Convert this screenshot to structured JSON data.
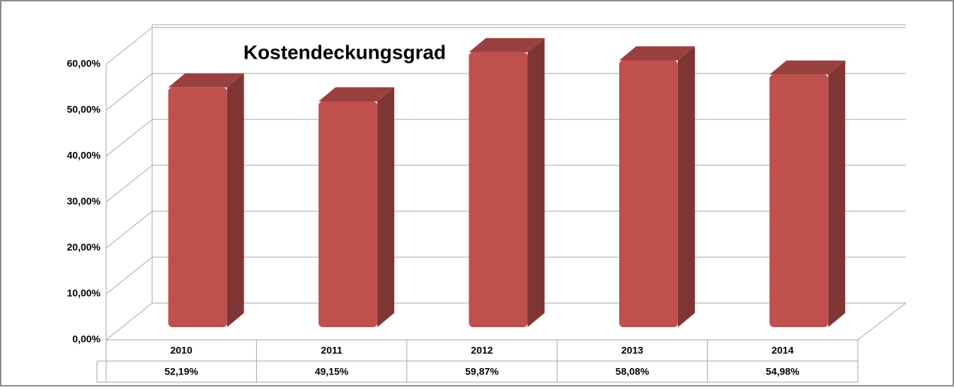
{
  "chart_data": {
    "type": "bar3d",
    "title": "Kostendeckungsgrad",
    "categories": [
      "2010",
      "2011",
      "2012",
      "2013",
      "2014"
    ],
    "values": [
      52.19,
      49.15,
      59.87,
      58.08,
      54.98
    ],
    "value_labels": [
      "52,19%",
      "49,15%",
      "59,87%",
      "58,08%",
      "54,98%"
    ],
    "color": "#c0504d",
    "ylim": [
      0,
      60
    ],
    "yticks": [
      {
        "value": 0,
        "label": "0,00%"
      },
      {
        "value": 10,
        "label": "10,00%"
      },
      {
        "value": 20,
        "label": "20,00%"
      },
      {
        "value": 30,
        "label": "30,00%"
      },
      {
        "value": 40,
        "label": "40,00%"
      },
      {
        "value": 50,
        "label": "50,00%"
      },
      {
        "value": 60,
        "label": "60,00%"
      }
    ],
    "grid": true
  }
}
